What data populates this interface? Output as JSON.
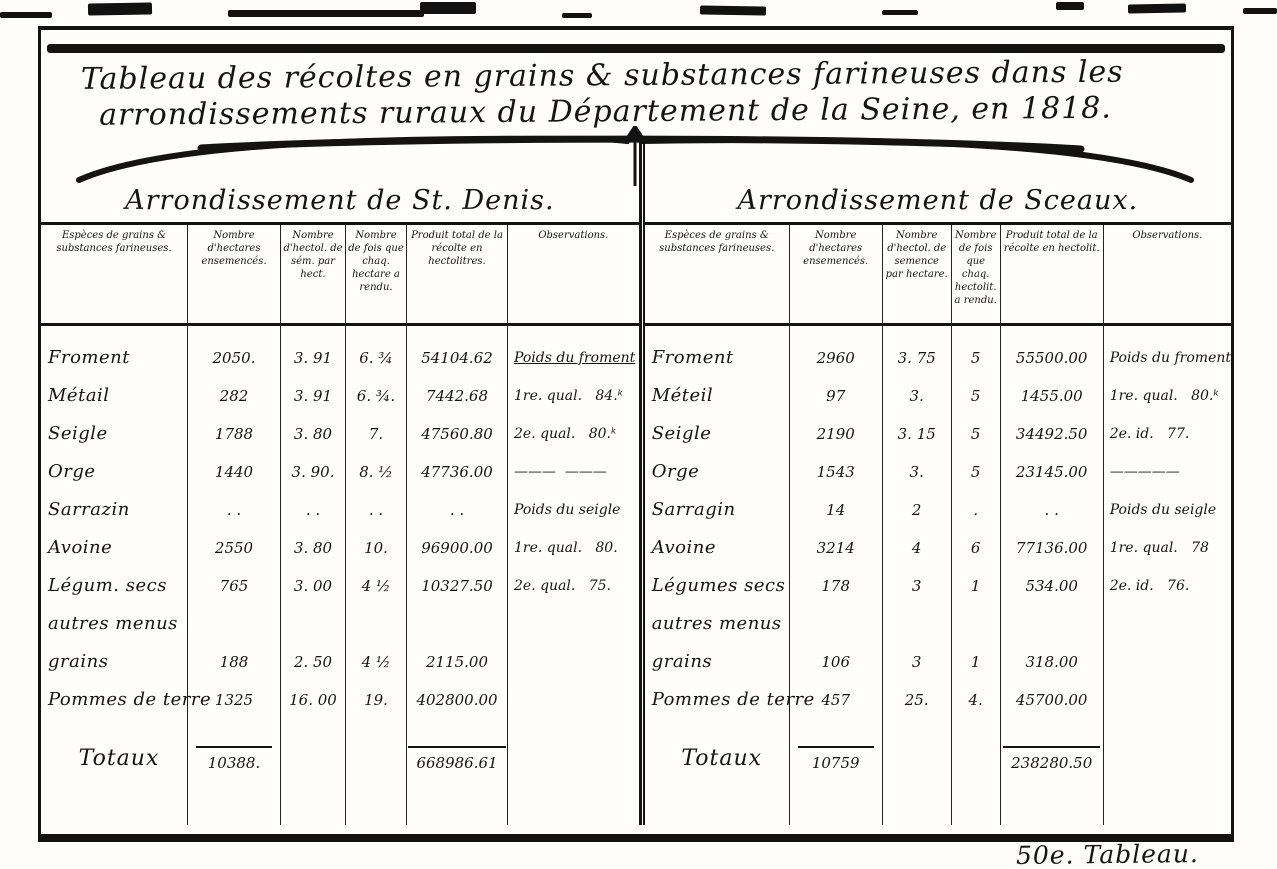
{
  "document": {
    "title_line1": "Tableau des récoltes en grains & substances farineuses dans les",
    "title_line2": "arrondissements ruraux du Département de la Seine, en 1818.",
    "footer_note": "50e. Tableau."
  },
  "tables": [
    {
      "heading": "Arrondissement de St. Denis.",
      "columns": [
        "Espèces de grains & substances farineuses.",
        "Nombre d'hectares ensemencés.",
        "Nombre d'hectol. de sém. par hect.",
        "Nombre de fois que chaq. hectare a rendu.",
        "Produit total de la récolte en hectolitres.",
        "Observations."
      ],
      "rows": [
        {
          "label": "Froment",
          "hectares": "2050.",
          "semence": "3. 91",
          "fois": "6. ¾",
          "produit": "54104.62"
        },
        {
          "label": "Métail",
          "hectares": "282",
          "semence": "3. 91",
          "fois": "6. ¾.",
          "produit": "7442.68"
        },
        {
          "label": "Seigle",
          "hectares": "1788",
          "semence": "3. 80",
          "fois": "7.",
          "produit": "47560.80"
        },
        {
          "label": "Orge",
          "hectares": "1440",
          "semence": "3. 90.",
          "fois": "8. ½",
          "produit": "47736.00"
        },
        {
          "label": "Sarrazin",
          "hectares": ". .",
          "semence": ". .",
          "fois": ". .",
          "produit": ". ."
        },
        {
          "label": "Avoine",
          "hectares": "2550",
          "semence": "3. 80",
          "fois": "10.",
          "produit": "96900.00"
        },
        {
          "label": "Légum. secs",
          "hectares": "765",
          "semence": "3. 00",
          "fois": "4 ½",
          "produit": "10327.50"
        },
        {
          "label": "autres menus",
          "hectares": "",
          "semence": "",
          "fois": "",
          "produit": ""
        },
        {
          "label": "grains",
          "hectares": "188",
          "semence": "2. 50",
          "fois": "4 ½",
          "produit": "2115.00"
        },
        {
          "label": "Pommes de terre",
          "hectares": "1325",
          "semence": "16. 00",
          "fois": "19.",
          "produit": "402800.00"
        }
      ],
      "totals": {
        "label": "Totaux",
        "hectares": "10388.",
        "produit": "668986.61"
      },
      "observations": [
        "Poids du froment",
        "1re. qual.   84.ᵏ",
        "2e. qual.   80.ᵏ",
        "———  ———",
        "Poids du seigle",
        "1re. qual.   80.",
        "2e. qual.   75."
      ]
    },
    {
      "heading": "Arrondissement de Sceaux.",
      "columns": [
        "Espèces de grains & substances farineuses.",
        "Nombre d'hectares ensemencés.",
        "Nombre d'hectol. de semence par hectare.",
        "Nombre de fois que chaq. hectolit. a rendu.",
        "Produit total de la récolte en hectolit.",
        "Observations."
      ],
      "rows": [
        {
          "label": "Froment",
          "hectares": "2960",
          "semence": "3. 75",
          "fois": "5",
          "produit": "55500.00"
        },
        {
          "label": "Méteil",
          "hectares": "97",
          "semence": "3.",
          "fois": "5",
          "produit": "1455.00"
        },
        {
          "label": "Seigle",
          "hectares": "2190",
          "semence": "3. 15",
          "fois": "5",
          "produit": "34492.50"
        },
        {
          "label": "Orge",
          "hectares": "1543",
          "semence": "3.",
          "fois": "5",
          "produit": "23145.00"
        },
        {
          "label": "Sarragin",
          "hectares": "14",
          "semence": "2",
          "fois": ".",
          "produit": ". ."
        },
        {
          "label": "Avoine",
          "hectares": "3214",
          "semence": "4",
          "fois": "6",
          "produit": "77136.00"
        },
        {
          "label": "Légumes secs",
          "hectares": "178",
          "semence": "3",
          "fois": "1",
          "produit": "534.00"
        },
        {
          "label": "autres menus",
          "hectares": "",
          "semence": "",
          "fois": "",
          "produit": ""
        },
        {
          "label": "grains",
          "hectares": "106",
          "semence": "3",
          "fois": "1",
          "produit": "318.00"
        },
        {
          "label": "Pommes de terre",
          "hectares": "457",
          "semence": "25.",
          "fois": "4.",
          "produit": "45700.00"
        }
      ],
      "totals": {
        "label": "Totaux",
        "hectares": "10759",
        "produit": "238280.50"
      },
      "observations": [
        "Poids du froment",
        "1re. qual.   80.ᵏ",
        "2e. id.   77.",
        "—————",
        "Poids du seigle",
        "1re. qual.   78",
        "2e. id.   76."
      ]
    }
  ]
}
